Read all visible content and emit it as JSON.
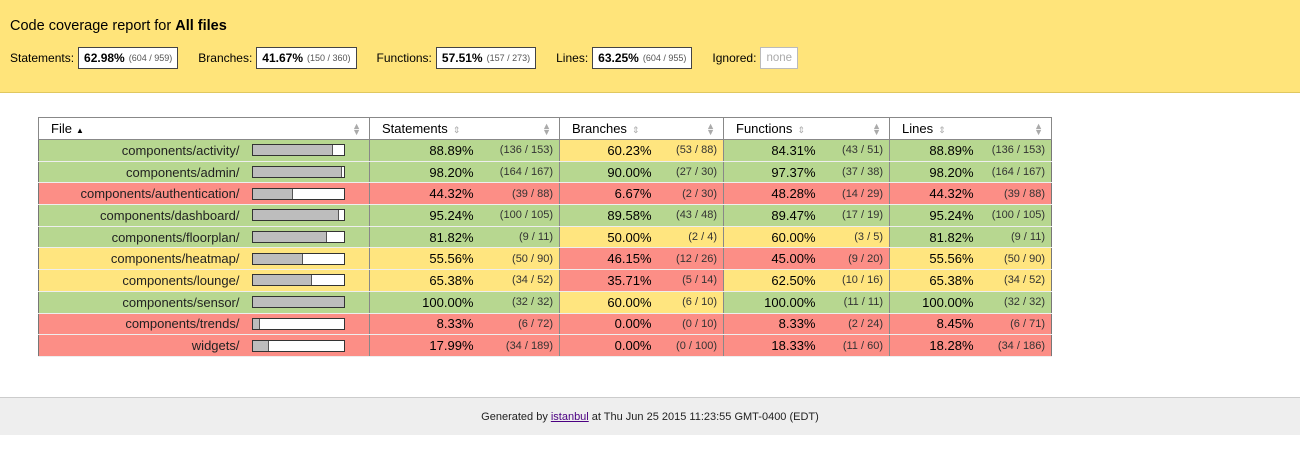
{
  "header": {
    "title_prefix": "Code coverage report for",
    "title_target": "All files"
  },
  "summary": [
    {
      "label": "Statements:",
      "pct": "62.98%",
      "frac": "(604 / 959)"
    },
    {
      "label": "Branches:",
      "pct": "41.67%",
      "frac": "(150 / 360)"
    },
    {
      "label": "Functions:",
      "pct": "57.51%",
      "frac": "(157 / 273)"
    },
    {
      "label": "Lines:",
      "pct": "63.25%",
      "frac": "(604 / 955)"
    }
  ],
  "ignored": {
    "label": "Ignored:",
    "value": "none"
  },
  "columns": {
    "file": "File",
    "statements": "Statements",
    "branches": "Branches",
    "functions": "Functions",
    "lines": "Lines"
  },
  "rows": [
    {
      "file": "components/activity/",
      "fill": 0.8889,
      "level": "high",
      "st": [
        "88.89%",
        "(136 / 153)",
        "high"
      ],
      "br": [
        "60.23%",
        "(53 / 88)",
        "medium"
      ],
      "fn": [
        "84.31%",
        "(43 / 51)",
        "high"
      ],
      "ln": [
        "88.89%",
        "(136 / 153)",
        "high"
      ]
    },
    {
      "file": "components/admin/",
      "fill": 0.982,
      "level": "high",
      "st": [
        "98.20%",
        "(164 / 167)",
        "high"
      ],
      "br": [
        "90.00%",
        "(27 / 30)",
        "high"
      ],
      "fn": [
        "97.37%",
        "(37 / 38)",
        "high"
      ],
      "ln": [
        "98.20%",
        "(164 / 167)",
        "high"
      ]
    },
    {
      "file": "components/authentication/",
      "fill": 0.4432,
      "level": "low",
      "st": [
        "44.32%",
        "(39 / 88)",
        "low"
      ],
      "br": [
        "6.67%",
        "(2 / 30)",
        "low"
      ],
      "fn": [
        "48.28%",
        "(14 / 29)",
        "low"
      ],
      "ln": [
        "44.32%",
        "(39 / 88)",
        "low"
      ]
    },
    {
      "file": "components/dashboard/",
      "fill": 0.9524,
      "level": "high",
      "st": [
        "95.24%",
        "(100 / 105)",
        "high"
      ],
      "br": [
        "89.58%",
        "(43 / 48)",
        "high"
      ],
      "fn": [
        "89.47%",
        "(17 / 19)",
        "high"
      ],
      "ln": [
        "95.24%",
        "(100 / 105)",
        "high"
      ]
    },
    {
      "file": "components/floorplan/",
      "fill": 0.8182,
      "level": "high",
      "st": [
        "81.82%",
        "(9 / 11)",
        "high"
      ],
      "br": [
        "50.00%",
        "(2 / 4)",
        "medium"
      ],
      "fn": [
        "60.00%",
        "(3 / 5)",
        "medium"
      ],
      "ln": [
        "81.82%",
        "(9 / 11)",
        "high"
      ]
    },
    {
      "file": "components/heatmap/",
      "fill": 0.5556,
      "level": "medium",
      "st": [
        "55.56%",
        "(50 / 90)",
        "medium"
      ],
      "br": [
        "46.15%",
        "(12 / 26)",
        "low"
      ],
      "fn": [
        "45.00%",
        "(9 / 20)",
        "low"
      ],
      "ln": [
        "55.56%",
        "(50 / 90)",
        "medium"
      ]
    },
    {
      "file": "components/lounge/",
      "fill": 0.6538,
      "level": "medium",
      "st": [
        "65.38%",
        "(34 / 52)",
        "medium"
      ],
      "br": [
        "35.71%",
        "(5 / 14)",
        "low"
      ],
      "fn": [
        "62.50%",
        "(10 / 16)",
        "medium"
      ],
      "ln": [
        "65.38%",
        "(34 / 52)",
        "medium"
      ]
    },
    {
      "file": "components/sensor/",
      "fill": 1.0,
      "level": "high",
      "st": [
        "100.00%",
        "(32 / 32)",
        "high"
      ],
      "br": [
        "60.00%",
        "(6 / 10)",
        "medium"
      ],
      "fn": [
        "100.00%",
        "(11 / 11)",
        "high"
      ],
      "ln": [
        "100.00%",
        "(32 / 32)",
        "high"
      ]
    },
    {
      "file": "components/trends/",
      "fill": 0.0833,
      "level": "low",
      "st": [
        "8.33%",
        "(6 / 72)",
        "low"
      ],
      "br": [
        "0.00%",
        "(0 / 10)",
        "low"
      ],
      "fn": [
        "8.33%",
        "(2 / 24)",
        "low"
      ],
      "ln": [
        "8.45%",
        "(6 / 71)",
        "low"
      ]
    },
    {
      "file": "widgets/",
      "fill": 0.1799,
      "level": "low",
      "st": [
        "17.99%",
        "(34 / 189)",
        "low"
      ],
      "br": [
        "0.00%",
        "(0 / 100)",
        "low"
      ],
      "fn": [
        "18.33%",
        "(11 / 60)",
        "low"
      ],
      "ln": [
        "18.28%",
        "(34 / 186)",
        "low"
      ]
    }
  ],
  "footer": {
    "prefix": "Generated by",
    "link": "istanbul",
    "suffix": "at Thu Jun 25 2015 11:23:55 GMT-0400 (EDT)"
  },
  "colors": {
    "high": "#b7d790",
    "medium": "#ffe57f",
    "low": "#fc8e86",
    "header": "#ffe47a"
  }
}
